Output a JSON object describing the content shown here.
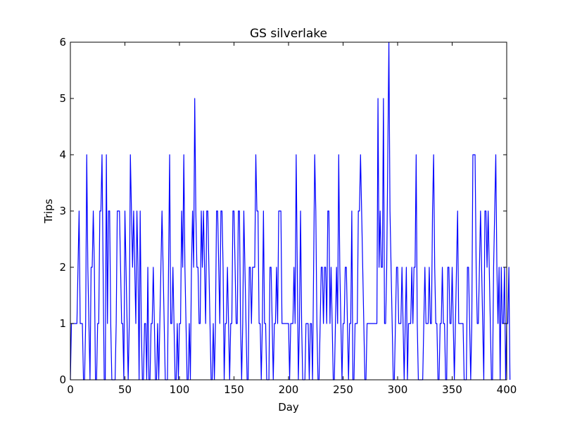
{
  "chart_data": {
    "type": "line",
    "title": "GS silverlake",
    "xlabel": "Day",
    "ylabel": "Trips",
    "xlim": [
      0,
      400
    ],
    "ylim": [
      0,
      6
    ],
    "xticks": [
      0,
      50,
      100,
      150,
      200,
      250,
      300,
      350,
      400
    ],
    "yticks": [
      0,
      1,
      2,
      3,
      4,
      5,
      6
    ],
    "grid": false,
    "series": [
      {
        "color": "#0000ff",
        "x_start": 0,
        "x_step": 1,
        "values": [
          0,
          1,
          1,
          1,
          1,
          1,
          1,
          2,
          3,
          1,
          1,
          1,
          0,
          0,
          1,
          4,
          2,
          1,
          0,
          2,
          2,
          3,
          2,
          0,
          0,
          1,
          1,
          3,
          3,
          4,
          2,
          0,
          0,
          4,
          1,
          3,
          3,
          1,
          0,
          0,
          0,
          0,
          1,
          3,
          3,
          3,
          2,
          1,
          1,
          0,
          3,
          2,
          1,
          0,
          1,
          4,
          3,
          2,
          3,
          2,
          1,
          3,
          2,
          0,
          3,
          1,
          0,
          0,
          1,
          1,
          0,
          2,
          0,
          0,
          1,
          1,
          2,
          1,
          0,
          0,
          1,
          0,
          1,
          2,
          3,
          2,
          1,
          0,
          0,
          0,
          2,
          4,
          1,
          1,
          2,
          1,
          0,
          0,
          1,
          0,
          1,
          1,
          3,
          2,
          4,
          2,
          1,
          0,
          0,
          1,
          0,
          2,
          3,
          2,
          5,
          3,
          2,
          2,
          1,
          1,
          3,
          2,
          3,
          2,
          1,
          3,
          3,
          2,
          1,
          0,
          0,
          1,
          0,
          1,
          3,
          3,
          2,
          1,
          3,
          3,
          2,
          0,
          1,
          1,
          2,
          1,
          0,
          1,
          1,
          3,
          3,
          2,
          1,
          1,
          3,
          3,
          1,
          0,
          1,
          3,
          2,
          1,
          0,
          0,
          2,
          2,
          1,
          2,
          2,
          2,
          4,
          3,
          3,
          1,
          1,
          0,
          1,
          3,
          1,
          1,
          0,
          0,
          0,
          2,
          2,
          1,
          0,
          1,
          1,
          2,
          1,
          3,
          3,
          3,
          1,
          1,
          1,
          1,
          1,
          1,
          1,
          0,
          1,
          1,
          1,
          2,
          1,
          4,
          2,
          0,
          1,
          3,
          1,
          0,
          0,
          0,
          1,
          1,
          1,
          0,
          1,
          1,
          0,
          2,
          4,
          3,
          1,
          0,
          0,
          1,
          2,
          2,
          1,
          2,
          2,
          1,
          3,
          3,
          1,
          2,
          1,
          0,
          0,
          1,
          2,
          1,
          4,
          2,
          1,
          0,
          1,
          1,
          2,
          2,
          1,
          0,
          1,
          1,
          3,
          0,
          0,
          1,
          1,
          1,
          3,
          3,
          4,
          3,
          2,
          1,
          0,
          0,
          1,
          1,
          1,
          1,
          1,
          1,
          1,
          1,
          1,
          1,
          5,
          2,
          3,
          2,
          2,
          5,
          1,
          1,
          2,
          4,
          6,
          3,
          2,
          1,
          0,
          0,
          1,
          2,
          2,
          1,
          1,
          1,
          2,
          1,
          0,
          1,
          2,
          0,
          1,
          1,
          1,
          2,
          1,
          2,
          2,
          4,
          1,
          0,
          0,
          0,
          0,
          0,
          1,
          2,
          1,
          1,
          1,
          2,
          1,
          1,
          3,
          4,
          2,
          1,
          1,
          0,
          0,
          1,
          1,
          2,
          1,
          1,
          0,
          0,
          2,
          2,
          1,
          1,
          2,
          1,
          0,
          1,
          2,
          3,
          1,
          1,
          1,
          1,
          1,
          0,
          0,
          0,
          2,
          2,
          1,
          0,
          1,
          4,
          4,
          4,
          2,
          1,
          1,
          2,
          3,
          2,
          1,
          0,
          3,
          3,
          2,
          3,
          2,
          1,
          0,
          0,
          2,
          3,
          4,
          2,
          1,
          2,
          0,
          2,
          1,
          1,
          2,
          0,
          1,
          1,
          2,
          0
        ]
      }
    ]
  }
}
